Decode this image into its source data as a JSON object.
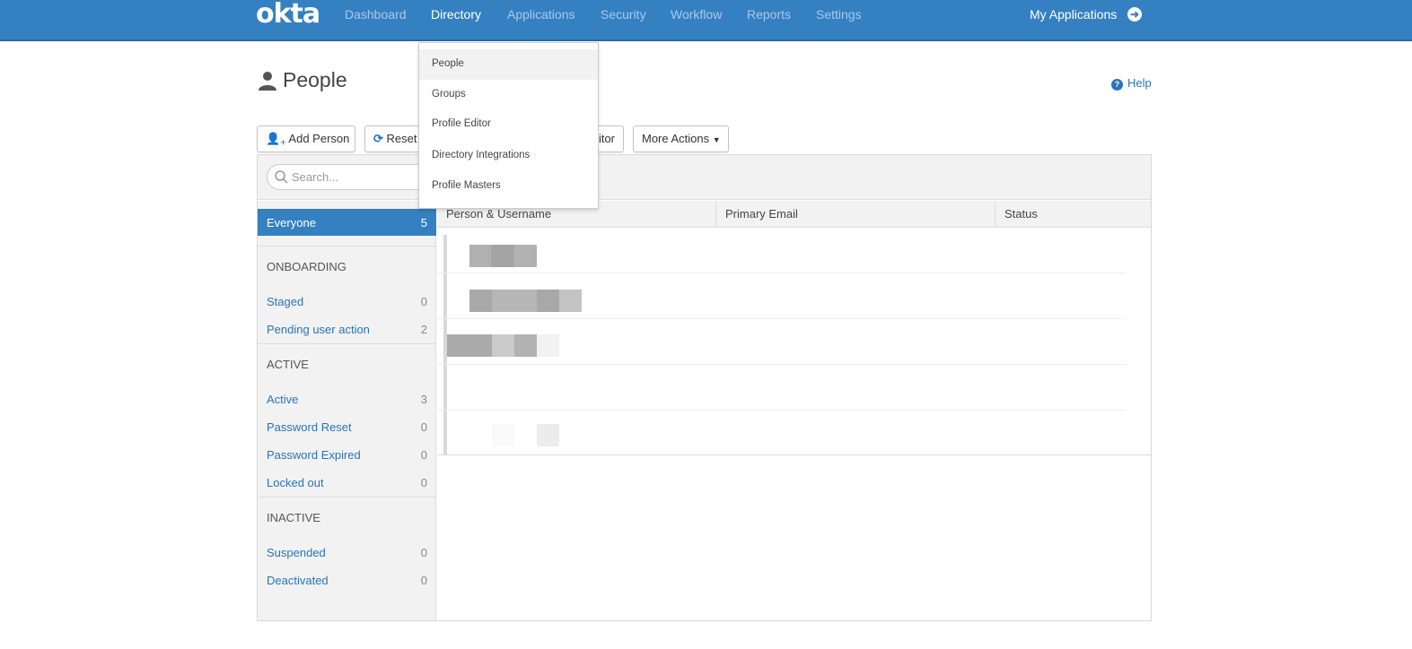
{
  "topnav": {
    "logo": "okta",
    "items": [
      "Dashboard",
      "Directory",
      "Applications",
      "Security",
      "Workflow",
      "Reports",
      "Settings"
    ],
    "active": "Directory",
    "my_applications": "My Applications",
    "arrow_icon": "arrow-right-circle-icon"
  },
  "page": {
    "title": "People",
    "help": "Help"
  },
  "actions": {
    "add_person": "Add Person",
    "reset": "Reset Passwords",
    "profile_editor": "Profile Editor",
    "more_actions": "More Actions"
  },
  "search": {
    "placeholder": "Search..."
  },
  "sidebar": {
    "everyone": {
      "label": "Everyone",
      "count": "5"
    },
    "onboarding": {
      "header": "ONBOARDING",
      "items": [
        {
          "label": "Staged",
          "count": "0"
        },
        {
          "label": "Pending user action",
          "count": "2"
        }
      ]
    },
    "active": {
      "header": "ACTIVE",
      "items": [
        {
          "label": "Active",
          "count": "3"
        },
        {
          "label": "Password Reset",
          "count": "0"
        },
        {
          "label": "Password Expired",
          "count": "0"
        },
        {
          "label": "Locked out",
          "count": "0"
        }
      ]
    },
    "inactive": {
      "header": "INACTIVE",
      "items": [
        {
          "label": "Suspended",
          "count": "0"
        },
        {
          "label": "Deactivated",
          "count": "0"
        }
      ]
    }
  },
  "table": {
    "columns": [
      "Person & Username",
      "Primary Email",
      "Status"
    ]
  },
  "directory_menu": {
    "items": [
      "People",
      "Groups",
      "Profile Editor",
      "Directory Integrations",
      "Profile Masters"
    ],
    "highlighted": "People"
  },
  "colors": {
    "brand": "#3580c0",
    "link": "#2a74b8"
  }
}
